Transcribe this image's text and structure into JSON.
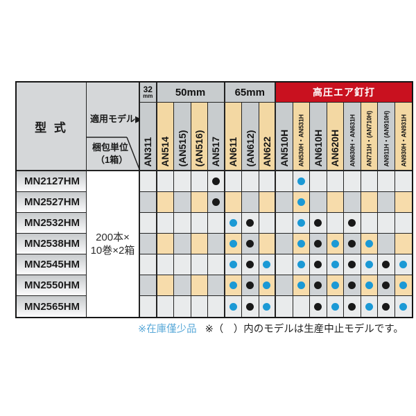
{
  "table": {
    "corner_label": "型 式",
    "applicable_label": "適用モデル▶",
    "packing_label": [
      "梱包単位",
      "（1箱）"
    ],
    "packing_value": [
      "200本×",
      "10巻×2箱"
    ],
    "groups": [
      {
        "label": "32",
        "sublabel": "mm",
        "span": 1,
        "style": "gray",
        "name": "32mm"
      },
      {
        "label": "50mm",
        "span": 4,
        "style": "gray",
        "name": "50mm"
      },
      {
        "label": "65mm",
        "span": 3,
        "style": "gray",
        "name": "65mm"
      },
      {
        "label": "高圧エア釘打",
        "span": 8,
        "style": "red",
        "name": "high-pressure-air-nailer"
      }
    ],
    "columns": [
      {
        "name": "AN311",
        "tone": "gray",
        "size": "normal"
      },
      {
        "name": "AN514",
        "tone": "tan",
        "size": "normal"
      },
      {
        "name": "(AN515)",
        "tone": "gray",
        "size": "normal"
      },
      {
        "name": "(AN516)",
        "tone": "tan",
        "size": "normal"
      },
      {
        "name": "AN517",
        "tone": "gray",
        "size": "normal"
      },
      {
        "name": "AN611",
        "tone": "tan",
        "size": "normal"
      },
      {
        "name": "(AN612)",
        "tone": "gray",
        "size": "normal"
      },
      {
        "name": "AN622",
        "tone": "tan",
        "size": "normal"
      },
      {
        "name": "AN510H",
        "tone": "gray",
        "size": "normal"
      },
      {
        "name": "AN530H・AN531H",
        "tone": "tan",
        "size": "small"
      },
      {
        "name": "AN610H",
        "tone": "gray",
        "size": "normal"
      },
      {
        "name": "AN620H",
        "tone": "tan",
        "size": "normal"
      },
      {
        "name": "AN630H・AN631H",
        "tone": "gray",
        "size": "small"
      },
      {
        "name": "AN711H・(AN710H)",
        "tone": "tan",
        "size": "small"
      },
      {
        "name": "AN911H・(AN910H)",
        "tone": "gray",
        "size": "small"
      },
      {
        "name": "AN930H・AN931H",
        "tone": "tan",
        "size": "small"
      }
    ],
    "group_boundaries_after": [
      0,
      4,
      7
    ],
    "rows": [
      {
        "model": "MN2127HM",
        "dots": [
          {
            "col": 4,
            "color": "black"
          },
          {
            "col": 9,
            "color": "blue"
          }
        ]
      },
      {
        "model": "MN2527HM",
        "dots": [
          {
            "col": 4,
            "color": "black"
          },
          {
            "col": 9,
            "color": "blue"
          }
        ]
      },
      {
        "model": "MN2532HM",
        "dots": [
          {
            "col": 5,
            "color": "blue"
          },
          {
            "col": 6,
            "color": "black"
          },
          {
            "col": 9,
            "color": "blue"
          },
          {
            "col": 10,
            "color": "black"
          },
          {
            "col": 12,
            "color": "black"
          }
        ]
      },
      {
        "model": "MN2538HM",
        "dots": [
          {
            "col": 5,
            "color": "blue"
          },
          {
            "col": 6,
            "color": "black"
          },
          {
            "col": 9,
            "color": "blue"
          },
          {
            "col": 10,
            "color": "black"
          },
          {
            "col": 11,
            "color": "blue"
          },
          {
            "col": 12,
            "color": "black"
          },
          {
            "col": 13,
            "color": "blue"
          }
        ]
      },
      {
        "model": "MN2545HM",
        "dots": [
          {
            "col": 5,
            "color": "blue"
          },
          {
            "col": 6,
            "color": "black"
          },
          {
            "col": 7,
            "color": "blue"
          },
          {
            "col": 9,
            "color": "blue"
          },
          {
            "col": 10,
            "color": "black"
          },
          {
            "col": 11,
            "color": "blue"
          },
          {
            "col": 12,
            "color": "black"
          },
          {
            "col": 13,
            "color": "blue"
          },
          {
            "col": 14,
            "color": "black"
          },
          {
            "col": 15,
            "color": "blue"
          }
        ]
      },
      {
        "model": "MN2550HM",
        "dots": [
          {
            "col": 5,
            "color": "blue"
          },
          {
            "col": 6,
            "color": "black"
          },
          {
            "col": 7,
            "color": "blue"
          },
          {
            "col": 9,
            "color": "blue"
          },
          {
            "col": 10,
            "color": "black"
          },
          {
            "col": 11,
            "color": "blue"
          },
          {
            "col": 12,
            "color": "black"
          },
          {
            "col": 13,
            "color": "blue"
          },
          {
            "col": 14,
            "color": "black"
          },
          {
            "col": 15,
            "color": "blue"
          }
        ]
      },
      {
        "model": "MN2565HM",
        "dots": [
          {
            "col": 5,
            "color": "blue"
          },
          {
            "col": 6,
            "color": "black"
          },
          {
            "col": 7,
            "color": "blue"
          },
          {
            "col": 10,
            "color": "black"
          },
          {
            "col": 11,
            "color": "blue"
          },
          {
            "col": 12,
            "color": "black"
          },
          {
            "col": 13,
            "color": "blue"
          },
          {
            "col": 14,
            "color": "black"
          },
          {
            "col": 15,
            "color": "blue"
          }
        ]
      }
    ]
  },
  "notes": {
    "low_stock": "※在庫僅少品",
    "discontinued": "※（　）内のモデルは生産中止モデルです。"
  },
  "colors": {
    "red_band": "#c9111f",
    "header_tan": "#f3d8a3",
    "header_gray": "#c8ccce",
    "row_light": "#e9ebec",
    "row_gray": "#cfd3d6",
    "row_tan": "#f7dcab",
    "dot_blue": "#1b99d5",
    "dot_black": "#191919",
    "note_blue": "#58a8d8"
  }
}
